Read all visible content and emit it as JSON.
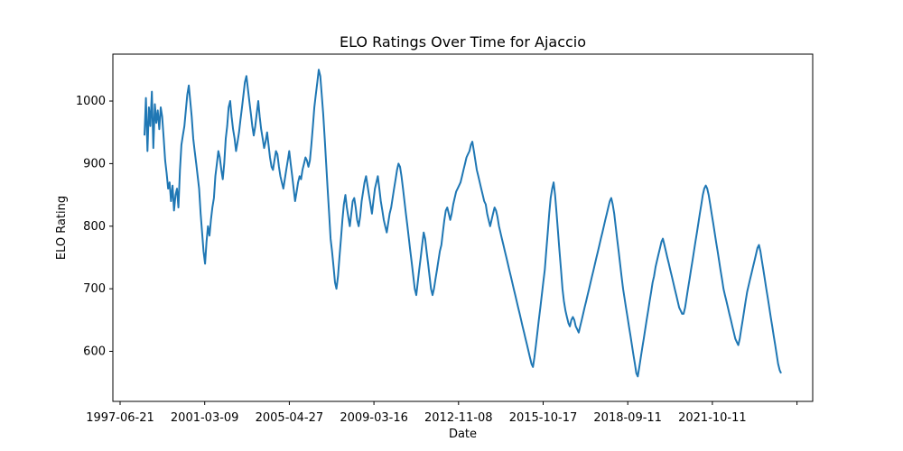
{
  "chart_data": {
    "type": "line",
    "title": "ELO Ratings Over Time for Ajaccio",
    "xlabel": "Date",
    "ylabel": "ELO Rating",
    "x_tick_labels": [
      "1997-06-21",
      "2001-03-09",
      "2005-04-27",
      "2009-03-16",
      "2012-11-08",
      "2015-10-17",
      "2018-09-11",
      "2021-10-11",
      ""
    ],
    "y_ticks": [
      600,
      700,
      800,
      900,
      1000
    ],
    "ylim": [
      520,
      1075
    ],
    "grid": false,
    "legend": "none",
    "line_color": "#1f77b4",
    "series": [
      {
        "values": [
          945,
          1005,
          920,
          990,
          960,
          1015,
          925,
          995,
          965,
          985,
          955,
          990,
          975,
          940,
          905,
          885,
          860,
          870,
          840,
          865,
          825,
          850,
          860,
          830,
          890,
          930,
          945,
          960,
          985,
          1010,
          1025,
          1000,
          975,
          940,
          920,
          900,
          880,
          860,
          820,
          790,
          760,
          740,
          775,
          800,
          785,
          810,
          830,
          845,
          880,
          900,
          920,
          910,
          890,
          875,
          900,
          940,
          960,
          990,
          1000,
          975,
          955,
          940,
          920,
          935,
          950,
          970,
          990,
          1010,
          1030,
          1040,
          1020,
          1000,
          980,
          960,
          945,
          960,
          980,
          1000,
          975,
          955,
          940,
          925,
          935,
          950,
          930,
          910,
          895,
          890,
          905,
          920,
          915,
          895,
          880,
          870,
          860,
          875,
          890,
          905,
          920,
          900,
          880,
          860,
          840,
          855,
          870,
          880,
          875,
          890,
          900,
          910,
          905,
          895,
          905,
          930,
          960,
          990,
          1010,
          1030,
          1050,
          1040,
          1010,
          980,
          940,
          900,
          860,
          820,
          780,
          760,
          735,
          710,
          700,
          720,
          750,
          780,
          810,
          835,
          850,
          830,
          815,
          800,
          820,
          840,
          845,
          830,
          810,
          800,
          815,
          840,
          855,
          870,
          880,
          865,
          850,
          835,
          820,
          840,
          860,
          870,
          880,
          860,
          840,
          825,
          810,
          800,
          790,
          805,
          820,
          830,
          845,
          860,
          875,
          890,
          900,
          895,
          880,
          860,
          840,
          820,
          800,
          780,
          760,
          740,
          720,
          700,
          690,
          710,
          730,
          750,
          770,
          790,
          780,
          760,
          740,
          720,
          700,
          690,
          700,
          715,
          730,
          745,
          760,
          770,
          790,
          810,
          825,
          830,
          820,
          810,
          820,
          835,
          845,
          855,
          860,
          865,
          870,
          880,
          890,
          900,
          910,
          915,
          920,
          930,
          935,
          920,
          905,
          890,
          880,
          870,
          860,
          850,
          840,
          835,
          820,
          810,
          800,
          810,
          820,
          830,
          825,
          815,
          800,
          790,
          780,
          770,
          760,
          750,
          740,
          730,
          720,
          710,
          700,
          690,
          680,
          670,
          660,
          650,
          640,
          630,
          620,
          610,
          600,
          590,
          580,
          575,
          590,
          610,
          630,
          650,
          670,
          690,
          710,
          730,
          760,
          790,
          820,
          845,
          860,
          870,
          850,
          820,
          790,
          760,
          730,
          700,
          680,
          665,
          655,
          645,
          640,
          650,
          655,
          650,
          640,
          635,
          630,
          640,
          650,
          660,
          670,
          680,
          690,
          700,
          710,
          720,
          730,
          740,
          750,
          760,
          770,
          780,
          790,
          800,
          810,
          820,
          830,
          840,
          845,
          835,
          820,
          800,
          780,
          760,
          740,
          720,
          700,
          685,
          670,
          655,
          640,
          625,
          610,
          595,
          580,
          565,
          560,
          575,
          590,
          605,
          620,
          635,
          650,
          665,
          680,
          695,
          710,
          720,
          735,
          745,
          755,
          765,
          775,
          780,
          770,
          760,
          750,
          740,
          730,
          720,
          710,
          700,
          690,
          680,
          670,
          665,
          660,
          660,
          670,
          685,
          700,
          715,
          730,
          745,
          760,
          775,
          790,
          805,
          820,
          835,
          850,
          860,
          865,
          860,
          850,
          835,
          820,
          805,
          790,
          775,
          760,
          745,
          730,
          715,
          700,
          690,
          680,
          670,
          660,
          650,
          640,
          630,
          620,
          615,
          610,
          620,
          635,
          650,
          665,
          680,
          695,
          705,
          715,
          725,
          735,
          745,
          755,
          765,
          770,
          760,
          745,
          730,
          715,
          700,
          685,
          670,
          655,
          640,
          625,
          610,
          595,
          580,
          570,
          565
        ],
        "x_start": "1998-06-01",
        "x_end": "2024-05-15"
      }
    ]
  }
}
